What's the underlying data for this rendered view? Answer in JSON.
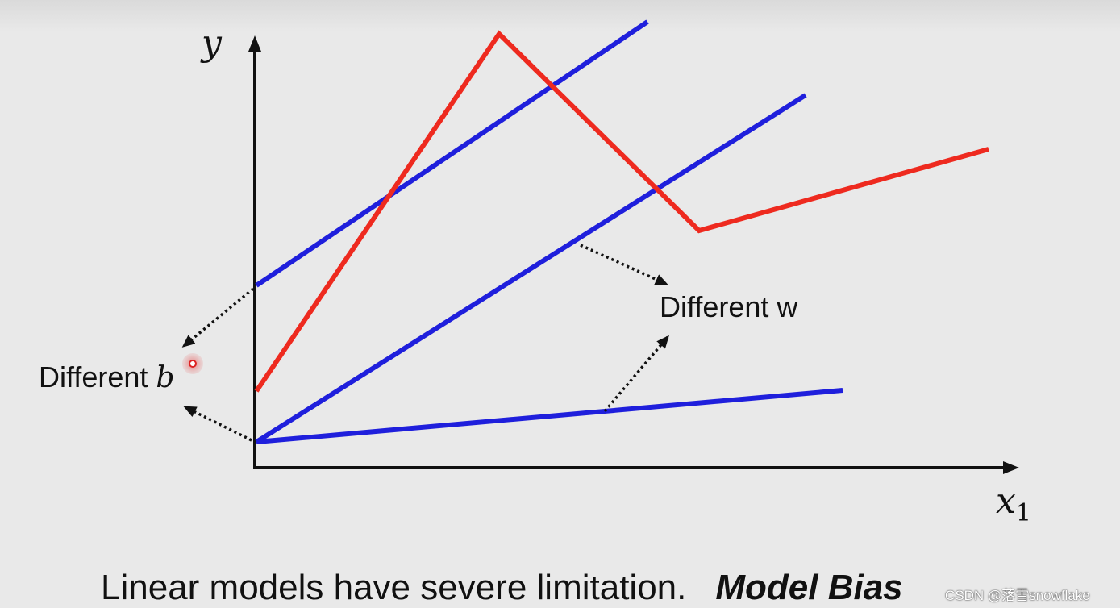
{
  "diagram": {
    "axis_y_label": "y",
    "axis_x_label": "x",
    "axis_x_subscript": "1",
    "label_b_text": "Different ",
    "label_b_symbol": "b",
    "label_w": "Different w",
    "colors": {
      "linear": "#1f1fdc",
      "piecewise": "#ee2a1f",
      "axis": "#111111"
    }
  },
  "caption": {
    "text": "Linear models have severe limitation.",
    "emphasis": "Model Bias"
  },
  "watermark": "CSDN @落雪snowflake"
}
